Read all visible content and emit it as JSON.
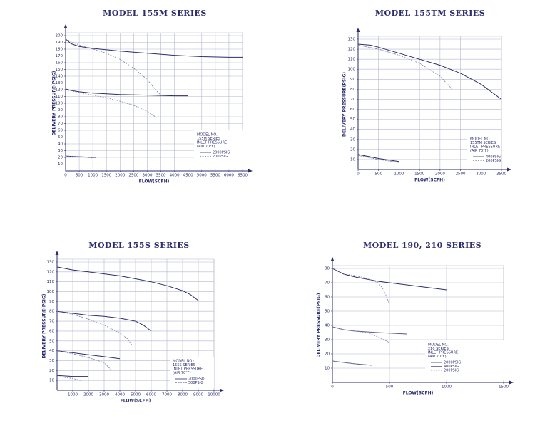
{
  "chart_data": [
    {
      "type": "line",
      "title": "MODEL 155M SERIES",
      "xlabel": "FLOW(SCFH)",
      "ylabel": "DELIVERY PRESSURE(PSIG)",
      "xlim": [
        0,
        6500
      ],
      "ylim": [
        0,
        200
      ],
      "xticks": [
        0,
        500,
        1000,
        1500,
        2000,
        2500,
        3000,
        3500,
        4000,
        4500,
        5000,
        5500,
        6000,
        6500
      ],
      "yticks": [
        10,
        20,
        30,
        40,
        50,
        60,
        70,
        80,
        90,
        100,
        110,
        120,
        130,
        140,
        150,
        160,
        170,
        180,
        190,
        200
      ],
      "grid": true,
      "legend": "lower right",
      "legend_text": [
        "MODEL NO.:",
        "155M SERIES",
        "INLET PRESSURE",
        "(AIR 70°F)"
      ],
      "series": [
        {
          "name": "2000PSIG",
          "color": "#2b2d6e",
          "style": "solid",
          "curves": [
            {
              "x": [
                0,
                200,
                500,
                1000,
                2000,
                3000,
                4000,
                5000,
                6000,
                6500
              ],
              "values": [
                195,
                188,
                184,
                181,
                177,
                174,
                171,
                169,
                168,
                168
              ]
            },
            {
              "x": [
                0,
                200,
                500,
                1000,
                2000,
                3000,
                4000,
                4500
              ],
              "values": [
                121,
                119,
                117,
                115,
                113,
                112,
                111,
                111
              ]
            },
            {
              "x": [
                0,
                500,
                1000,
                1100
              ],
              "values": [
                22,
                21,
                20,
                20
              ]
            }
          ]
        },
        {
          "name": "200PSIG",
          "color": "#7a7fa8",
          "style": "dashed",
          "curves": [
            {
              "x": [
                0,
                500,
                1000,
                1500,
                2000,
                2500,
                3000,
                3300,
                3500
              ],
              "values": [
                195,
                186,
                180,
                174,
                165,
                152,
                135,
                120,
                112
              ]
            },
            {
              "x": [
                0,
                500,
                1000,
                1500,
                2000,
                2500,
                3000,
                3300
              ],
              "values": [
                120,
                116,
                112,
                108,
                103,
                97,
                88,
                80
              ]
            },
            {
              "x": [
                0,
                500,
                1000
              ],
              "values": [
                22,
                21,
                19
              ]
            }
          ]
        }
      ]
    },
    {
      "type": "line",
      "title": "MODEL 155TM SERIES",
      "xlabel": "FLOW(SCFH)",
      "ylabel": "DELIVERY PRESSURE(PSIG)",
      "xlim": [
        0,
        3500
      ],
      "ylim": [
        0,
        130
      ],
      "xticks": [
        0,
        500,
        1000,
        1500,
        2000,
        2500,
        3000,
        3500
      ],
      "yticks": [
        10,
        20,
        30,
        40,
        50,
        60,
        70,
        80,
        90,
        100,
        110,
        120,
        130
      ],
      "grid": true,
      "legend": "lower right",
      "legend_text": [
        "MODEL NO.:",
        "155TM SERIES",
        "INLET PRESSURE",
        "(AIR 70°F)"
      ],
      "series": [
        {
          "name": "400PSIG",
          "color": "#2b2d6e",
          "style": "solid",
          "curves": [
            {
              "x": [
                0,
                300,
                500,
                1000,
                1500,
                2000,
                2500,
                3000,
                3500
              ],
              "values": [
                125,
                124,
                122,
                116,
                110,
                104,
                96,
                85,
                70
              ]
            },
            {
              "x": [
                0,
                500,
                1000
              ],
              "values": [
                15,
                11,
                8
              ]
            }
          ]
        },
        {
          "name": "200PSIG",
          "color": "#7a7fa8",
          "style": "dashed",
          "curves": [
            {
              "x": [
                0,
                500,
                1000,
                1500,
                2000,
                2300
              ],
              "values": [
                124,
                120,
                114,
                106,
                93,
                80
              ]
            },
            {
              "x": [
                0,
                500,
                1000
              ],
              "values": [
                14,
                10,
                7
              ]
            }
          ]
        }
      ]
    },
    {
      "type": "line",
      "title": "MODEL 155S SERIES",
      "xlabel": "FLOW(SCFH)",
      "ylabel": "DELIVERY PRESSURE(PSIG)",
      "xlim": [
        0,
        10000
      ],
      "ylim": [
        0,
        130
      ],
      "xticks": [
        1000,
        2000,
        3000,
        4000,
        5000,
        6000,
        7000,
        8000,
        9000,
        10000
      ],
      "yticks": [
        10,
        20,
        30,
        40,
        50,
        60,
        70,
        80,
        90,
        100,
        110,
        120,
        130
      ],
      "grid": true,
      "legend": "lower right",
      "legend_text": [
        "MODEL NO.:",
        "155S SERIES",
        "INLET PRESSURE",
        "(AIR 70°F)"
      ],
      "series": [
        {
          "name": "2000PSIG",
          "color": "#2b2d6e",
          "style": "solid",
          "curves": [
            {
              "x": [
                0,
                1000,
                2000,
                3000,
                4000,
                5000,
                6000,
                7000,
                8000,
                8500,
                9000
              ],
              "values": [
                125,
                122,
                120,
                118,
                116,
                113,
                110,
                106,
                101,
                97,
                91
              ]
            },
            {
              "x": [
                0,
                1000,
                2000,
                3000,
                4000,
                5000,
                5500,
                6000
              ],
              "values": [
                80,
                78,
                76,
                75,
                73,
                70,
                66,
                60
              ]
            },
            {
              "x": [
                0,
                1000,
                2000,
                3000,
                4000
              ],
              "values": [
                40,
                38,
                36,
                34,
                32
              ]
            },
            {
              "x": [
                0,
                1000,
                2000
              ],
              "values": [
                15,
                14,
                14
              ]
            }
          ]
        },
        {
          "name": "500PSIG",
          "color": "#7a7fa8",
          "style": "dashed",
          "curves": [
            {
              "x": [
                0,
                1000,
                2000,
                3000,
                4000,
                4500,
                4800
              ],
              "values": [
                80,
                77,
                72,
                66,
                58,
                52,
                45
              ]
            },
            {
              "x": [
                0,
                1000,
                2000,
                3000,
                3300,
                3500
              ],
              "values": [
                40,
                37,
                33,
                28,
                23,
                20
              ]
            },
            {
              "x": [
                0,
                500,
                1000,
                1500
              ],
              "values": [
                14,
                13,
                12,
                10
              ]
            }
          ]
        }
      ]
    },
    {
      "type": "line",
      "title": "MODEL 190, 210 SERIES",
      "xlabel": "FLOW(SCFH)",
      "ylabel": "DELIVERY PRESSURE(PSIG)",
      "xlim": [
        0,
        1500
      ],
      "ylim": [
        0,
        80
      ],
      "xticks": [
        0,
        500,
        1000,
        1500
      ],
      "yticks": [
        10,
        20,
        30,
        40,
        50,
        60,
        70,
        80
      ],
      "grid": true,
      "legend": "lower right",
      "legend_text": [
        "MODEL NO.:",
        "210 SERIES",
        "INLET PRESSURE",
        "(AIR 70°F)"
      ],
      "series": [
        {
          "name": "2000PSIG",
          "color": "#2b2d6e",
          "style": "solid",
          "curves": [
            {
              "x": [
                0,
                100,
                200,
                400,
                600,
                800,
                1000
              ],
              "values": [
                80,
                76,
                74,
                71,
                69,
                67,
                65
              ]
            }
          ]
        },
        {
          "name": "400PSIG",
          "color": "#555a8f",
          "style": "solid",
          "curves": [
            {
              "x": [
                0,
                100,
                200,
                400,
                650
              ],
              "values": [
                39,
                37,
                36,
                35,
                34
              ]
            },
            {
              "x": [
                0,
                100,
                200,
                350
              ],
              "values": [
                15,
                14,
                13,
                12
              ]
            }
          ]
        },
        {
          "name": "200PSIG",
          "color": "#7a7fa8",
          "style": "dashed",
          "curves": [
            {
              "x": [
                0,
                100,
                200,
                300,
                400,
                450,
                500
              ],
              "values": [
                80,
                76,
                75,
                73,
                70,
                65,
                55
              ]
            },
            {
              "x": [
                0,
                100,
                200,
                300,
                400,
                500
              ],
              "values": [
                39,
                37,
                36,
                35,
                32,
                28
              ]
            },
            {
              "x": [
                0,
                100,
                200,
                300
              ],
              "values": [
                15,
                14,
                13,
                12
              ]
            }
          ]
        }
      ]
    }
  ]
}
